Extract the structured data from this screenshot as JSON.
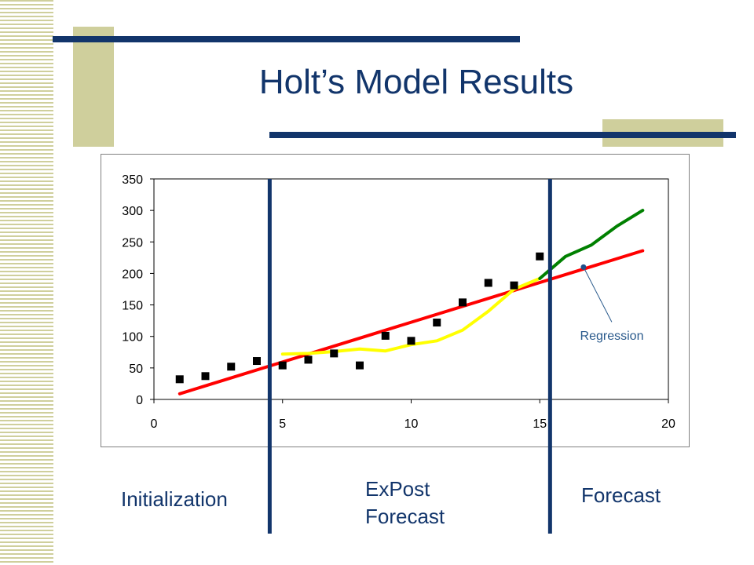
{
  "slide": {
    "title": "Holt’s Model Results",
    "accent_color": "#12356b",
    "deco_color": "#cfcf9c"
  },
  "regions": {
    "initialization": "Initialization",
    "expost_line1": "ExPost",
    "expost_line2": "Forecast",
    "forecast": "Forecast"
  },
  "chart_data": {
    "type": "line",
    "xlim": [
      0,
      20
    ],
    "ylim": [
      0,
      350
    ],
    "x_ticks": [
      0,
      5,
      10,
      15,
      20
    ],
    "y_ticks": [
      0,
      50,
      100,
      150,
      200,
      250,
      300,
      350
    ],
    "grid": false,
    "legend": "none",
    "series": [
      {
        "kind": "scatter",
        "color": "#000000",
        "points": [
          [
            1,
            32
          ],
          [
            2,
            37
          ],
          [
            3,
            52
          ],
          [
            4,
            61
          ],
          [
            5,
            54
          ],
          [
            6,
            63
          ],
          [
            7,
            73
          ],
          [
            8,
            54
          ],
          [
            9,
            101
          ],
          [
            10,
            93
          ],
          [
            11,
            122
          ],
          [
            12,
            154
          ],
          [
            13,
            185
          ],
          [
            14,
            181
          ],
          [
            15,
            227
          ]
        ]
      },
      {
        "kind": "line",
        "color": "#ff0000",
        "points": [
          [
            1,
            9
          ],
          [
            19,
            236
          ]
        ]
      },
      {
        "kind": "line",
        "color": "#ffff00",
        "points": [
          [
            5,
            72
          ],
          [
            6,
            73
          ],
          [
            7,
            76
          ],
          [
            8,
            80
          ],
          [
            9,
            77
          ],
          [
            10,
            87
          ],
          [
            11,
            93
          ],
          [
            12,
            110
          ],
          [
            13,
            140
          ],
          [
            14,
            175
          ],
          [
            15,
            192
          ]
        ]
      },
      {
        "kind": "line",
        "color": "#008000",
        "points": [
          [
            15,
            192
          ],
          [
            16,
            227
          ],
          [
            17,
            245
          ],
          [
            18,
            275
          ],
          [
            19,
            300
          ]
        ]
      }
    ],
    "dividers": [
      4.5,
      15.4
    ],
    "annotations": [
      {
        "text": "Regression",
        "target": [
          16.7,
          210
        ]
      }
    ]
  }
}
